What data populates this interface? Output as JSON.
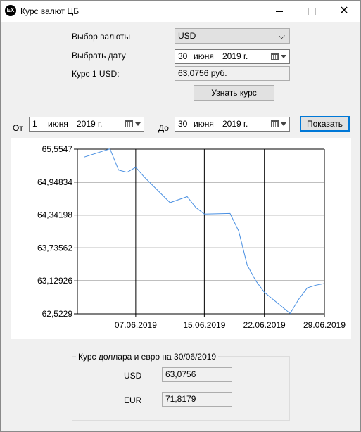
{
  "window": {
    "icon_text": "EX",
    "title": "Курс валют ЦБ"
  },
  "form": {
    "currency_label": "Выбор валюты",
    "currency_value": "USD",
    "date_label": "Выбрать дату",
    "date": {
      "day": "30",
      "month": "июня",
      "year": "2019 г."
    },
    "rate_label": "Курс 1 USD:",
    "rate_value": "63,0756 руб.",
    "get_rate_button": "Узнать курс"
  },
  "range": {
    "from_label": "От",
    "from": {
      "day": "1",
      "month": "июня",
      "year": "2019 г."
    },
    "to_label": "До",
    "to": {
      "day": "30",
      "month": "июня",
      "year": "2019 г."
    },
    "show_button": "Показать"
  },
  "chart_data": {
    "type": "line",
    "title": "",
    "xlabel": "",
    "ylabel": "",
    "y_ticks": [
      "65,5547",
      "64,94834",
      "64,34198",
      "63,73562",
      "63,12926",
      "62,5229"
    ],
    "x_ticks": [
      "07.06.2019",
      "15.06.2019",
      "22.06.2019",
      "29.06.2019"
    ],
    "ylim": [
      62.5229,
      65.5547
    ],
    "grid": true,
    "line_color": "#4a90e2",
    "series": [
      {
        "x": [
          "01.06.2019",
          "04.06.2019",
          "05.06.2019",
          "06.06.2019",
          "07.06.2019",
          "08.06.2019",
          "11.06.2019",
          "13.06.2019",
          "14.06.2019",
          "15.06.2019",
          "18.06.2019",
          "19.06.2019",
          "20.06.2019",
          "21.06.2019",
          "22.06.2019",
          "25.06.2019",
          "26.06.2019",
          "27.06.2019",
          "28.06.2019",
          "29.06.2019"
        ],
        "values": [
          65.41,
          65.56,
          65.17,
          65.13,
          65.22,
          65.04,
          64.57,
          64.68,
          64.48,
          64.36,
          64.37,
          64.05,
          63.42,
          63.13,
          62.92,
          62.53,
          62.79,
          63.0,
          63.05,
          63.08
        ]
      }
    ]
  },
  "summary": {
    "group_title": "Курс доллара и евро на 30/06/2019",
    "usd_label": "USD",
    "usd_value": "63,0756",
    "eur_label": "EUR",
    "eur_value": "71,8179"
  }
}
